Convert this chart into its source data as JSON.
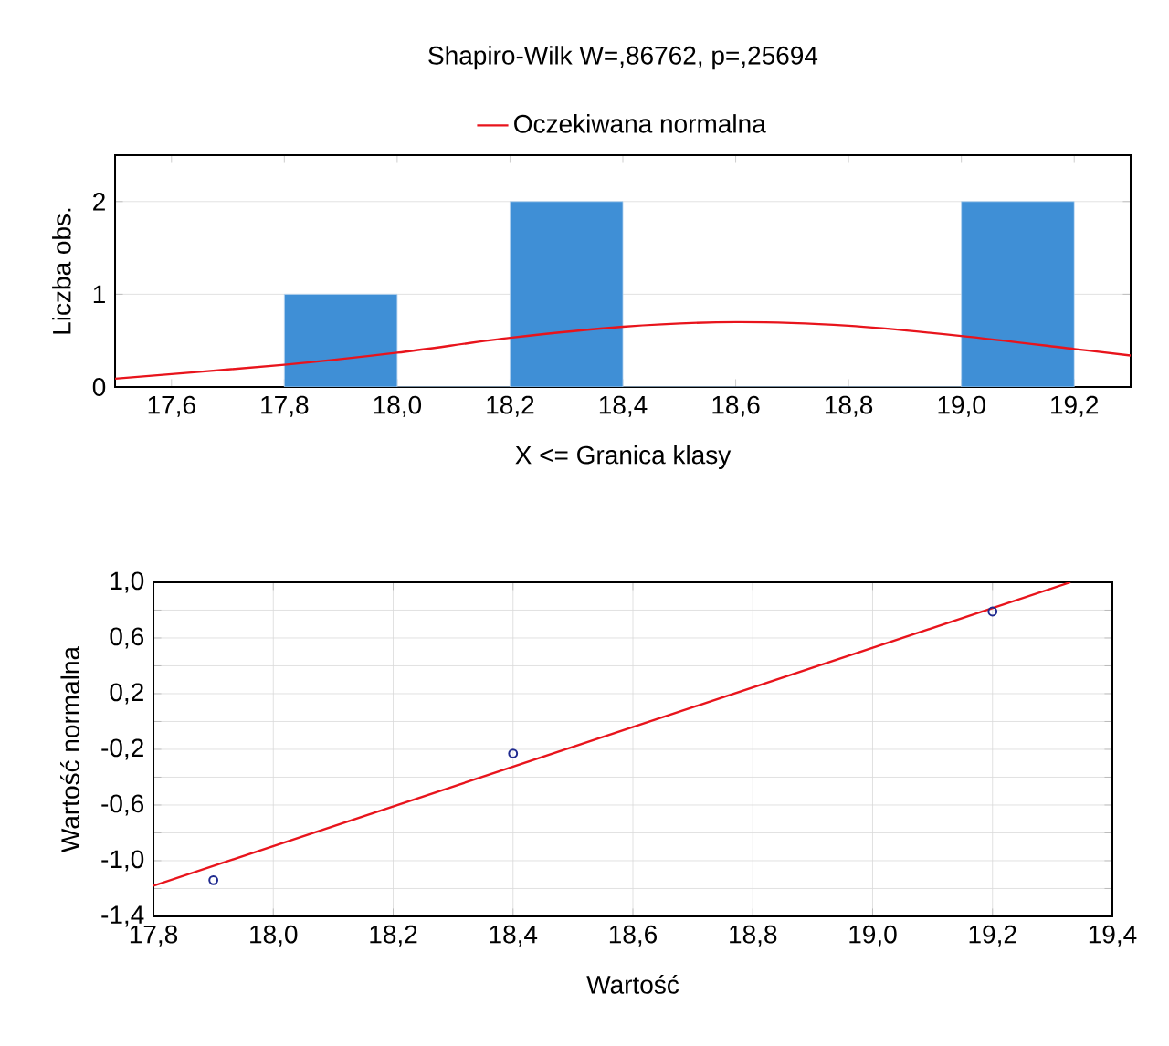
{
  "chart_data": [
    {
      "type": "histogram",
      "title": "Shapiro-Wilk W=,86762, p=,25694",
      "xlabel": "X <= Granica klasy",
      "ylabel": "Liczba obs.",
      "bins": [
        17.8,
        18.0,
        18.2,
        18.4,
        18.6,
        18.8,
        19.0,
        19.2
      ],
      "values": [
        1,
        0,
        2,
        0,
        0,
        0,
        2
      ],
      "color": "#3f8fd6",
      "series": [
        {
          "name": "Oczekiwana normalna",
          "type": "line",
          "color": "#e8141c",
          "x": [
            17.5,
            17.8,
            18.0,
            18.2,
            18.4,
            18.6,
            18.8,
            19.0,
            19.2,
            19.3
          ],
          "values": [
            0.09,
            0.24,
            0.37,
            0.53,
            0.65,
            0.7,
            0.66,
            0.55,
            0.41,
            0.34
          ]
        }
      ],
      "xlim": [
        17.5,
        19.3
      ],
      "ylim": [
        0,
        2.5
      ],
      "xticks": [
        {
          "value": 17.6,
          "label": "17,6"
        },
        {
          "value": 17.8,
          "label": "17,8"
        },
        {
          "value": 18.0,
          "label": "18,0"
        },
        {
          "value": 18.2,
          "label": "18,2"
        },
        {
          "value": 18.4,
          "label": "18,4"
        },
        {
          "value": 18.6,
          "label": "18,6"
        },
        {
          "value": 18.8,
          "label": "18,8"
        },
        {
          "value": 19.0,
          "label": "19,0"
        },
        {
          "value": 19.2,
          "label": "19,2"
        }
      ],
      "yticks": [
        0,
        1,
        2
      ],
      "grid": "y",
      "legend": "top"
    },
    {
      "type": "scatter",
      "xlabel": "Wartość",
      "ylabel": "Wartość normalna",
      "series": [
        {
          "type": "scatter",
          "marker": "circle",
          "color": "#1f2a8f",
          "x": [
            17.9,
            18.4,
            19.2
          ],
          "values": [
            -1.14,
            -0.23,
            0.79
          ]
        },
        {
          "type": "line",
          "color": "#e8141c",
          "x": [
            17.8,
            19.33
          ],
          "values": [
            -1.18,
            1.0
          ]
        }
      ],
      "xlim": [
        17.8,
        19.4
      ],
      "ylim": [
        -1.4,
        1.0
      ],
      "xticks": [
        {
          "value": 17.8,
          "label": "17,8"
        },
        {
          "value": 18.0,
          "label": "18,0"
        },
        {
          "value": 18.2,
          "label": "18,2"
        },
        {
          "value": 18.4,
          "label": "18,4"
        },
        {
          "value": 18.6,
          "label": "18,6"
        },
        {
          "value": 18.8,
          "label": "18,8"
        },
        {
          "value": 19.0,
          "label": "19,0"
        },
        {
          "value": 19.2,
          "label": "19,2"
        },
        {
          "value": 19.4,
          "label": "19,4"
        }
      ],
      "yticks": [
        {
          "value": -1.4,
          "label": "-1,4"
        },
        {
          "value": -1.2,
          "label": null
        },
        {
          "value": -1.0,
          "label": "-1,0"
        },
        {
          "value": -0.8,
          "label": null
        },
        {
          "value": -0.6,
          "label": "-0,6"
        },
        {
          "value": -0.4,
          "label": null
        },
        {
          "value": -0.2,
          "label": "-0,2"
        },
        {
          "value": 0.0,
          "label": null
        },
        {
          "value": 0.2,
          "label": "0,2"
        },
        {
          "value": 0.4,
          "label": null
        },
        {
          "value": 0.6,
          "label": "0,6"
        },
        {
          "value": 0.8,
          "label": null
        },
        {
          "value": 1.0,
          "label": "1,0"
        }
      ],
      "grid": true
    }
  ]
}
